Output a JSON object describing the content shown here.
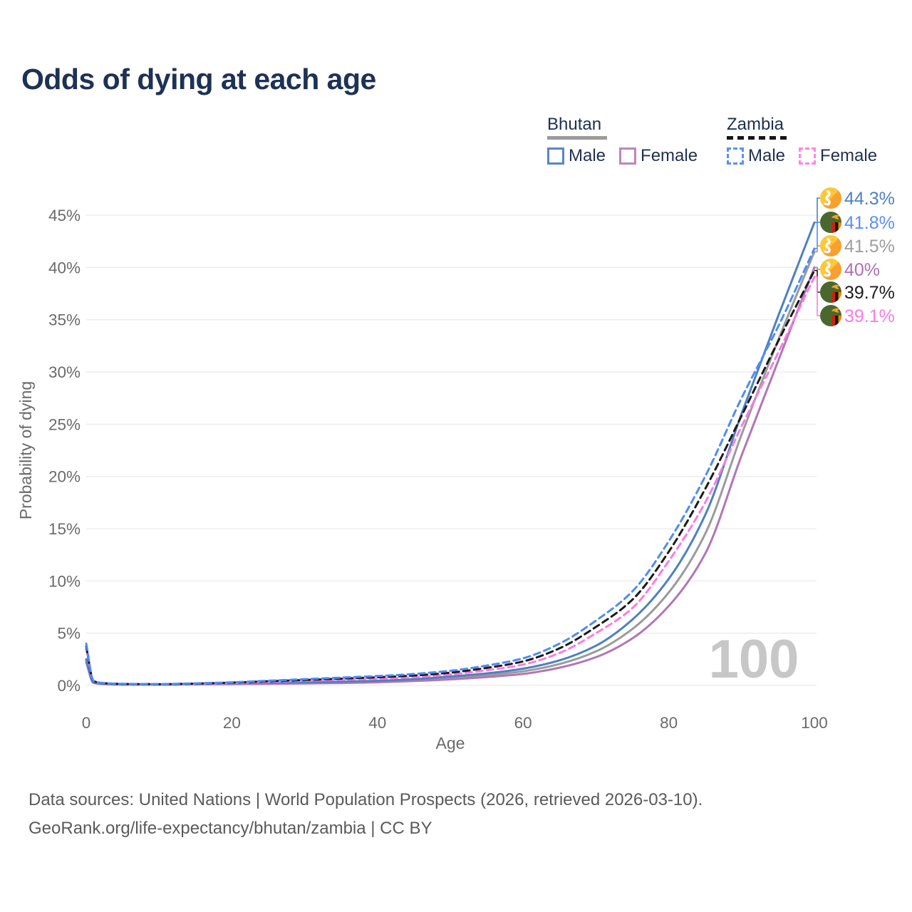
{
  "title": "Odds of dying at each age",
  "watermark": "100",
  "legend": {
    "groups": [
      {
        "label": "Bhutan",
        "line_style": "solid",
        "underline_color": "#9a9a9a",
        "items": [
          {
            "label": "Male",
            "color": "#5b84c4"
          },
          {
            "label": "Female",
            "color": "#bd85bf"
          }
        ]
      },
      {
        "label": "Zambia",
        "line_style": "dashed",
        "underline_color": "#161616",
        "items": [
          {
            "label": "Male",
            "color": "#5b8ff5"
          },
          {
            "label": "Female",
            "color": "#ff85e3"
          }
        ]
      }
    ]
  },
  "footer": {
    "line1": "Data sources: United Nations | World Population Prospects (2026, retrieved 2026-03-10).",
    "line2": "GeoRank.org/life-expectancy/bhutan/zambia | CC BY"
  },
  "chart_data": {
    "type": "line",
    "title": "Odds of dying at each age",
    "xlabel": "Age",
    "ylabel": "Probability of dying",
    "xlim": [
      0,
      100
    ],
    "ylim_pct": [
      0,
      45
    ],
    "x_ticks": [
      0,
      20,
      40,
      60,
      80,
      100
    ],
    "y_ticks_pct": [
      0,
      5,
      10,
      15,
      20,
      25,
      30,
      35,
      40,
      45
    ],
    "grid": true,
    "legend_position": "top-right",
    "x_ages": [
      0,
      1,
      2,
      5,
      10,
      15,
      20,
      25,
      30,
      35,
      40,
      45,
      50,
      55,
      60,
      65,
      70,
      75,
      80,
      85,
      90,
      95,
      100
    ],
    "series": [
      {
        "name": "Bhutan Both sexes",
        "country": "Bhutan",
        "sex": "Both",
        "flag": "bhutan",
        "color": "#9b9b9b",
        "label_color": "#9e9e9e",
        "dash": "solid",
        "end_label": "41.5%",
        "values_pct": [
          2.35,
          0.27,
          0.17,
          0.09,
          0.09,
          0.13,
          0.18,
          0.21,
          0.25,
          0.3,
          0.38,
          0.51,
          0.72,
          0.98,
          1.35,
          2.05,
          3.25,
          5.4,
          8.9,
          14.5,
          24.0,
          33.0,
          41.5
        ]
      },
      {
        "name": "Bhutan Female",
        "country": "Bhutan",
        "sex": "Female",
        "flag": "bhutan",
        "color": "#b176b6",
        "label_color": "#b06fb5",
        "dash": "solid",
        "end_label": "40%",
        "values_pct": [
          2.2,
          0.25,
          0.15,
          0.08,
          0.07,
          0.1,
          0.13,
          0.16,
          0.19,
          0.23,
          0.3,
          0.42,
          0.58,
          0.8,
          1.1,
          1.7,
          2.7,
          4.5,
          7.6,
          12.6,
          22.0,
          31.0,
          40.0
        ]
      },
      {
        "name": "Bhutan Male",
        "country": "Bhutan",
        "sex": "Male",
        "flag": "bhutan",
        "color": "#4e80c2",
        "label_color": "#4e80c2",
        "dash": "solid",
        "end_label": "44.3%",
        "values_pct": [
          2.5,
          0.28,
          0.18,
          0.1,
          0.1,
          0.16,
          0.22,
          0.26,
          0.3,
          0.36,
          0.45,
          0.6,
          0.85,
          1.15,
          1.6,
          2.4,
          3.8,
          6.3,
          10.2,
          16.3,
          26.0,
          35.3,
          44.3
        ]
      },
      {
        "name": "Zambia Female",
        "country": "Zambia",
        "sex": "Female",
        "flag": "zambia",
        "color": "#fb7be4",
        "label_color": "#fb7be4",
        "dash": "dashed",
        "end_label": "39.1%",
        "values_pct": [
          3.5,
          0.4,
          0.22,
          0.13,
          0.11,
          0.16,
          0.24,
          0.34,
          0.45,
          0.55,
          0.65,
          0.8,
          1.05,
          1.45,
          2.0,
          3.1,
          5.0,
          7.4,
          11.9,
          17.5,
          24.8,
          31.8,
          39.1
        ]
      },
      {
        "name": "Zambia Both sexes",
        "country": "Zambia",
        "sex": "Both",
        "flag": "zambia",
        "color": "#1b1b1b",
        "label_color": "#1c1c1c",
        "dash": "dashed",
        "end_label": "39.7%",
        "values_pct": [
          3.75,
          0.43,
          0.24,
          0.14,
          0.12,
          0.18,
          0.27,
          0.4,
          0.52,
          0.65,
          0.78,
          0.95,
          1.22,
          1.68,
          2.3,
          3.55,
          5.6,
          8.2,
          12.8,
          18.8,
          25.8,
          32.9,
          39.7
        ]
      },
      {
        "name": "Zambia Male",
        "country": "Zambia",
        "sex": "Male",
        "flag": "zambia",
        "color": "#4d8cf5",
        "label_color": "#5b8ff5",
        "dash": "dashed",
        "end_label": "41.8%",
        "values_pct": [
          4.0,
          0.45,
          0.25,
          0.15,
          0.13,
          0.2,
          0.3,
          0.45,
          0.6,
          0.75,
          0.9,
          1.1,
          1.4,
          1.9,
          2.6,
          4.0,
          6.2,
          9.0,
          13.8,
          20.0,
          27.5,
          34.3,
          41.8
        ]
      }
    ],
    "end_labels_top_to_bottom": [
      "44.3%",
      "41.8%",
      "41.5%",
      "40%",
      "39.7%",
      "39.1%"
    ]
  }
}
